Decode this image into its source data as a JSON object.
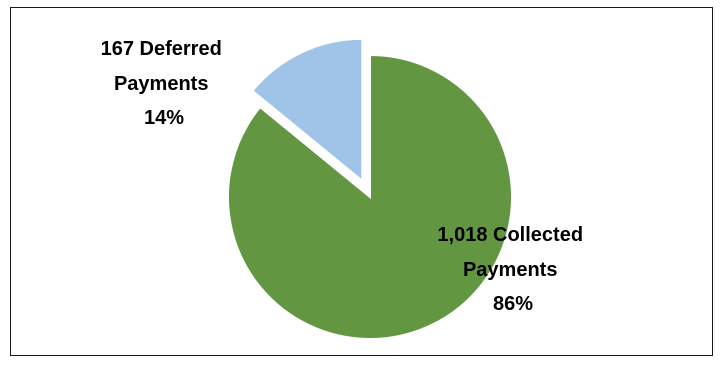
{
  "chart_data": {
    "type": "pie",
    "title": "",
    "slices": [
      {
        "count_label": "1,018 Collected",
        "label_line2": "Payments",
        "percent_label": "86%",
        "value": 1018,
        "percent": 86,
        "color": "#629640",
        "exploded": false
      },
      {
        "count_label": "167 Deferred",
        "label_line2": "Payments",
        "percent_label": "14%",
        "value": 167,
        "percent": 14,
        "color": "#9FC4E7",
        "exploded": true
      }
    ],
    "legend": "none",
    "start_angle_deg": 0,
    "direction": "clockwise"
  }
}
